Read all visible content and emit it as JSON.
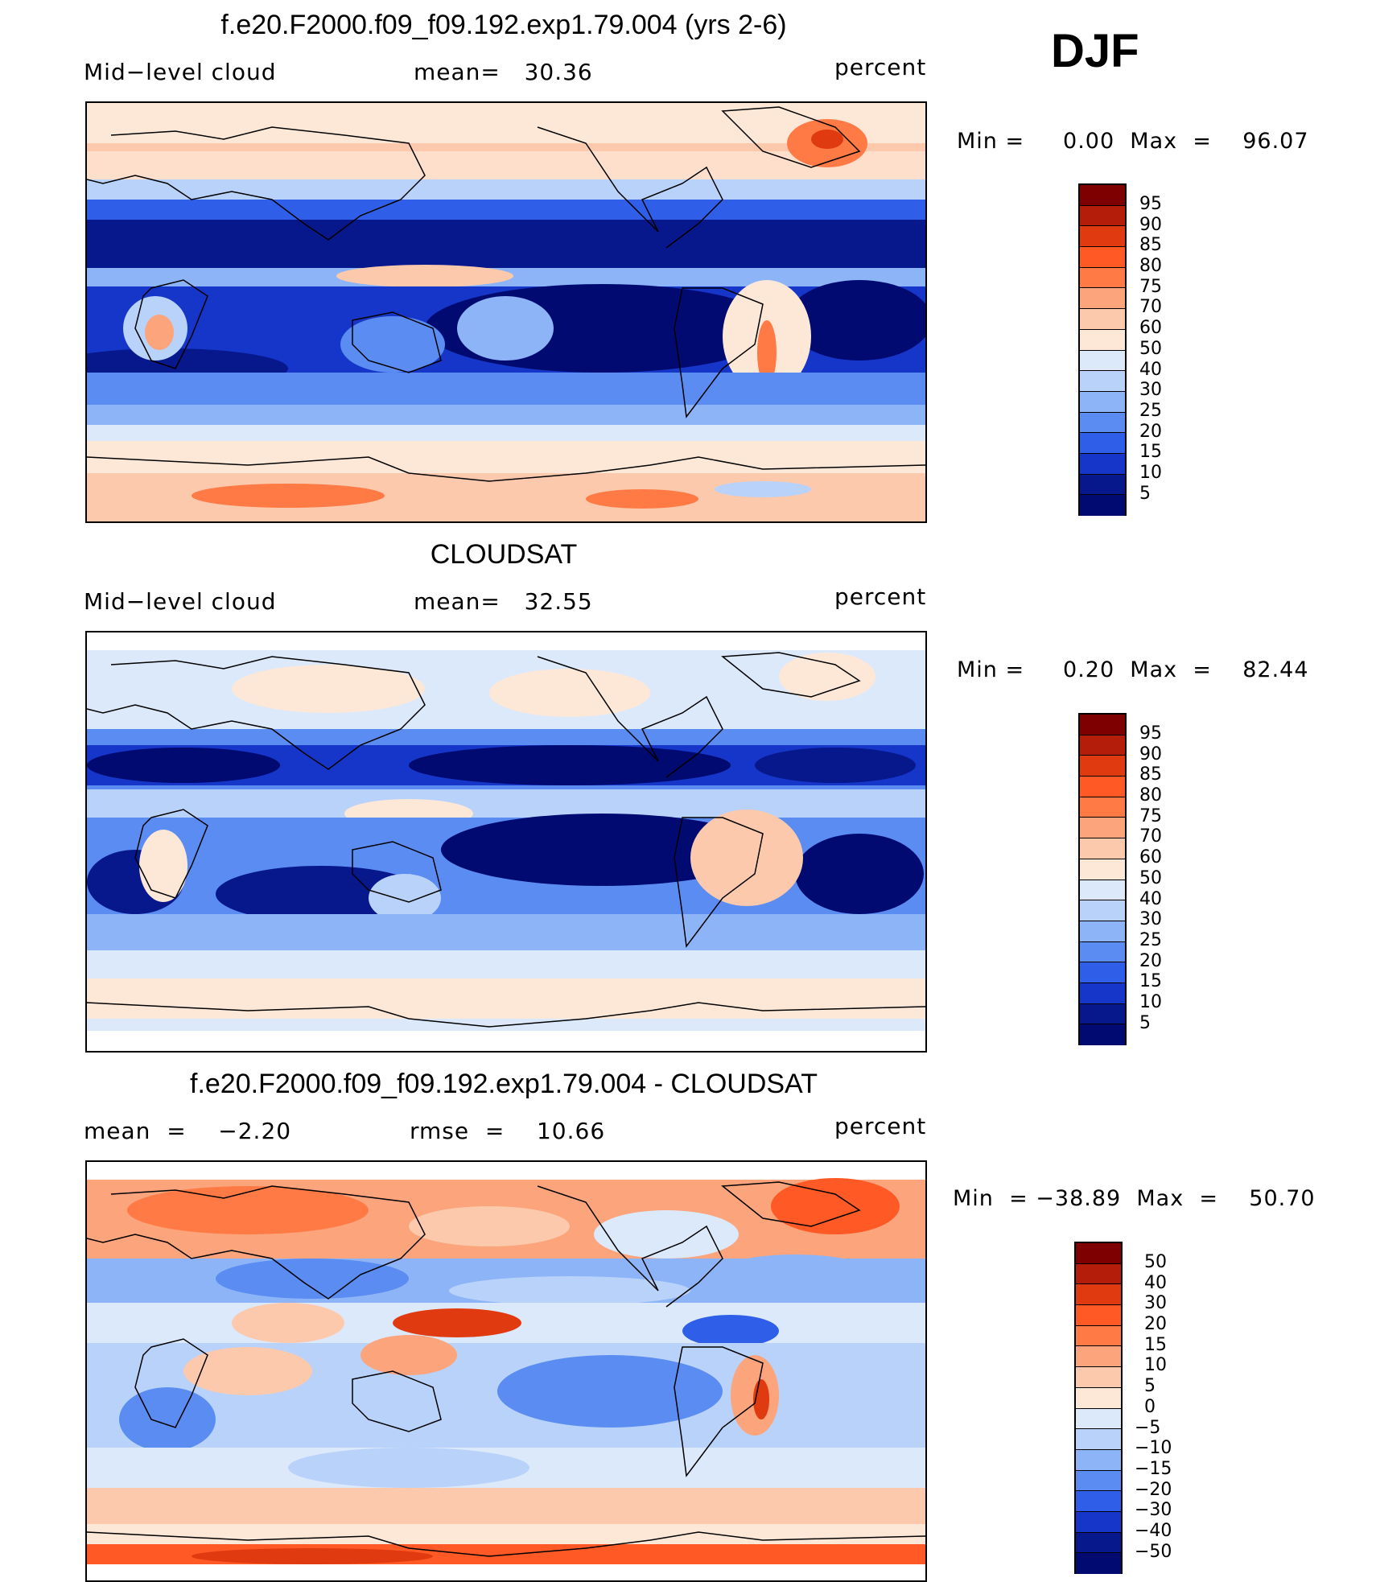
{
  "season": "DJF",
  "panels": [
    {
      "title": "f.e20.F2000.f09_f09.192.exp1.79.004 (yrs 2-6)",
      "left_text": "Mid−level cloud",
      "center_text": "mean=   30.36",
      "units": "percent",
      "minmax": "Min =     0.00  Max  =    96.07",
      "colorbar_labels": [
        "95",
        "90",
        "85",
        "80",
        "75",
        "70",
        "60",
        "50",
        "40",
        "30",
        "25",
        "20",
        "15",
        "10",
        "5"
      ]
    },
    {
      "title": "CLOUDSAT",
      "left_text": "Mid−level cloud",
      "center_text": "mean=   32.55",
      "units": "percent",
      "minmax": "Min =     0.20  Max  =    82.44",
      "colorbar_labels": [
        "95",
        "90",
        "85",
        "80",
        "75",
        "70",
        "60",
        "50",
        "40",
        "30",
        "25",
        "20",
        "15",
        "10",
        "5"
      ]
    },
    {
      "title": "f.e20.F2000.f09_f09.192.exp1.79.004 - CLOUDSAT",
      "left_text": "mean  =    −2.20",
      "center_text": "rmse  =    10.66",
      "units": "percent",
      "minmax": "Min  = −38.89  Max  =    50.70",
      "colorbar_labels": [
        "50",
        "40",
        "30",
        "20",
        "15",
        "10",
        "5",
        "0",
        "−5",
        "−10",
        "−15",
        "−20",
        "−30",
        "−40",
        "−50"
      ]
    }
  ],
  "colors": {
    "scale": [
      "#7f0000",
      "#b31d09",
      "#e03a10",
      "#ff5a26",
      "#ff7a45",
      "#fca47c",
      "#fdc9ad",
      "#fde8d8",
      "#dce9fb",
      "#b9d2fa",
      "#8db4f7",
      "#5a8cf2",
      "#2f5fe8",
      "#1536c8",
      "#07178c",
      "#000a70"
    ]
  }
}
